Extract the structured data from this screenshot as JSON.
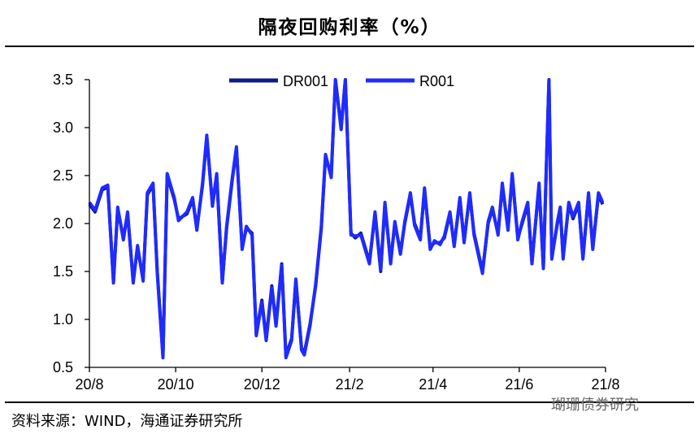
{
  "header": {
    "title": "隔夜回购利率（%）"
  },
  "footer": {
    "source": "资料来源：WIND，海通证券研究所",
    "watermark": "瑚珊债券研究"
  },
  "colors": {
    "DR001": "#0d1a8c",
    "R001": "#1f2bff",
    "axis": "#000000"
  },
  "chart_data": {
    "type": "line",
    "ylim": [
      0.5,
      3.5
    ],
    "yticks": [
      0.5,
      1.0,
      1.5,
      2.0,
      2.5,
      3.0,
      3.5
    ],
    "yticklabels": [
      "0.5",
      "1.0",
      "1.5",
      "2.0",
      "2.5",
      "3.0",
      "3.5"
    ],
    "xlim": [
      "2020-08-01",
      "2021-08-01"
    ],
    "xticks": [
      "2020-08-01",
      "2020-10-01",
      "2020-12-01",
      "2021-02-01",
      "2021-04-01",
      "2021-06-01",
      "2021-08-01"
    ],
    "xticklabels": [
      "20/8",
      "20/10",
      "20/12",
      "21/2",
      "21/4",
      "21/6",
      "21/8"
    ],
    "legend": {
      "position": "top-center",
      "entries": [
        "DR001",
        "R001"
      ]
    },
    "series": [
      {
        "name": "DR001",
        "x": [
          "2020-08-01",
          "2020-08-05",
          "2020-08-10",
          "2020-08-14",
          "2020-08-18",
          "2020-08-21",
          "2020-08-25",
          "2020-08-28",
          "2020-09-01",
          "2020-09-04",
          "2020-09-08",
          "2020-09-11",
          "2020-09-15",
          "2020-09-18",
          "2020-09-22",
          "2020-09-25",
          "2020-09-28",
          "2020-09-30",
          "2020-10-03",
          "2020-10-09",
          "2020-10-13",
          "2020-10-16",
          "2020-10-20",
          "2020-10-23",
          "2020-10-27",
          "2020-10-30",
          "2020-11-03",
          "2020-11-06",
          "2020-11-10",
          "2020-11-13",
          "2020-11-17",
          "2020-11-20",
          "2020-11-24",
          "2020-11-27",
          "2020-12-01",
          "2020-12-04",
          "2020-12-08",
          "2020-12-11",
          "2020-12-15",
          "2020-12-18",
          "2020-12-22",
          "2020-12-25",
          "2020-12-29",
          "2020-12-31",
          "2021-01-04",
          "2021-01-08",
          "2021-01-12",
          "2021-01-15",
          "2021-01-19",
          "2021-01-22",
          "2021-01-26",
          "2021-01-29",
          "2021-02-02",
          "2021-02-05",
          "2021-02-09",
          "2021-02-15",
          "2021-02-19",
          "2021-02-23",
          "2021-02-26",
          "2021-03-02",
          "2021-03-05",
          "2021-03-09",
          "2021-03-12",
          "2021-03-16",
          "2021-03-19",
          "2021-03-23",
          "2021-03-26",
          "2021-03-30",
          "2021-04-02",
          "2021-04-06",
          "2021-04-09",
          "2021-04-13",
          "2021-04-16",
          "2021-04-20",
          "2021-04-23",
          "2021-04-27",
          "2021-04-30",
          "2021-05-06",
          "2021-05-10",
          "2021-05-13",
          "2021-05-17",
          "2021-05-20",
          "2021-05-24",
          "2021-05-27",
          "2021-05-31",
          "2021-06-03",
          "2021-06-07",
          "2021-06-10",
          "2021-06-15",
          "2021-06-18",
          "2021-06-22",
          "2021-06-24",
          "2021-06-28",
          "2021-06-30",
          "2021-07-02",
          "2021-07-06",
          "2021-07-09",
          "2021-07-13",
          "2021-07-16",
          "2021-07-20",
          "2021-07-23",
          "2021-07-27",
          "2021-07-30"
        ],
        "y": [
          2.2,
          2.12,
          2.35,
          2.38,
          1.4,
          2.15,
          1.85,
          2.1,
          1.4,
          1.75,
          1.42,
          2.3,
          2.4,
          1.5,
          0.62,
          2.5,
          2.35,
          2.25,
          2.05,
          2.1,
          2.25,
          1.95,
          2.4,
          2.9,
          2.2,
          2.5,
          1.4,
          1.95,
          2.45,
          2.78,
          1.75,
          1.95,
          1.9,
          0.85,
          1.2,
          0.8,
          1.35,
          0.95,
          1.58,
          0.62,
          0.8,
          1.4,
          0.7,
          0.65,
          0.95,
          1.35,
          1.95,
          2.7,
          2.5,
          3.5,
          3.0,
          3.5,
          1.9,
          1.85,
          1.9,
          1.6,
          2.1,
          1.5,
          2.2,
          1.6,
          2.0,
          1.7,
          2.0,
          2.3,
          2.0,
          1.85,
          2.35,
          1.75,
          1.8,
          1.8,
          1.85,
          2.1,
          1.78,
          2.25,
          1.82,
          2.3,
          1.9,
          1.5,
          2.0,
          2.15,
          1.9,
          2.4,
          1.95,
          2.5,
          1.85,
          2.0,
          2.2,
          1.6,
          2.4,
          1.55,
          3.5,
          1.65,
          2.0,
          2.15,
          1.65,
          2.2,
          2.05,
          2.2,
          1.65,
          2.3,
          1.75,
          2.3,
          2.2
        ]
      },
      {
        "name": "R001",
        "x": [
          "2020-08-01",
          "2020-08-05",
          "2020-08-10",
          "2020-08-14",
          "2020-08-18",
          "2020-08-21",
          "2020-08-25",
          "2020-08-28",
          "2020-09-01",
          "2020-09-04",
          "2020-09-08",
          "2020-09-11",
          "2020-09-15",
          "2020-09-18",
          "2020-09-22",
          "2020-09-25",
          "2020-09-28",
          "2020-09-30",
          "2020-10-03",
          "2020-10-09",
          "2020-10-13",
          "2020-10-16",
          "2020-10-20",
          "2020-10-23",
          "2020-10-27",
          "2020-10-30",
          "2020-11-03",
          "2020-11-06",
          "2020-11-10",
          "2020-11-13",
          "2020-11-17",
          "2020-11-20",
          "2020-11-24",
          "2020-11-27",
          "2020-12-01",
          "2020-12-04",
          "2020-12-08",
          "2020-12-11",
          "2020-12-15",
          "2020-12-18",
          "2020-12-22",
          "2020-12-25",
          "2020-12-29",
          "2020-12-31",
          "2021-01-04",
          "2021-01-08",
          "2021-01-12",
          "2021-01-15",
          "2021-01-19",
          "2021-01-22",
          "2021-01-26",
          "2021-01-29",
          "2021-02-02",
          "2021-02-05",
          "2021-02-09",
          "2021-02-15",
          "2021-02-19",
          "2021-02-23",
          "2021-02-26",
          "2021-03-02",
          "2021-03-05",
          "2021-03-09",
          "2021-03-12",
          "2021-03-16",
          "2021-03-19",
          "2021-03-23",
          "2021-03-26",
          "2021-03-30",
          "2021-04-02",
          "2021-04-06",
          "2021-04-09",
          "2021-04-13",
          "2021-04-16",
          "2021-04-20",
          "2021-04-23",
          "2021-04-27",
          "2021-04-30",
          "2021-05-06",
          "2021-05-10",
          "2021-05-13",
          "2021-05-17",
          "2021-05-20",
          "2021-05-24",
          "2021-05-27",
          "2021-05-31",
          "2021-06-03",
          "2021-06-07",
          "2021-06-10",
          "2021-06-15",
          "2021-06-18",
          "2021-06-22",
          "2021-06-24",
          "2021-06-28",
          "2021-06-30",
          "2021-07-02",
          "2021-07-06",
          "2021-07-09",
          "2021-07-13",
          "2021-07-16",
          "2021-07-20",
          "2021-07-23",
          "2021-07-27",
          "2021-07-30"
        ],
        "y": [
          2.22,
          2.14,
          2.37,
          2.4,
          1.38,
          2.17,
          1.83,
          2.12,
          1.38,
          1.77,
          1.4,
          2.32,
          2.42,
          1.48,
          0.6,
          2.52,
          2.37,
          2.27,
          2.03,
          2.12,
          2.27,
          1.93,
          2.42,
          2.92,
          2.18,
          2.52,
          1.38,
          1.97,
          2.47,
          2.8,
          1.73,
          1.97,
          1.88,
          0.83,
          1.18,
          0.78,
          1.33,
          0.93,
          1.56,
          0.6,
          0.78,
          1.42,
          0.68,
          0.63,
          0.93,
          1.37,
          1.97,
          2.72,
          2.48,
          3.5,
          2.98,
          3.5,
          1.88,
          1.87,
          1.88,
          1.58,
          2.12,
          1.52,
          2.22,
          1.58,
          2.02,
          1.68,
          2.02,
          2.32,
          1.98,
          1.83,
          2.37,
          1.73,
          1.82,
          1.78,
          1.87,
          2.12,
          1.76,
          2.27,
          1.8,
          2.32,
          1.88,
          1.48,
          2.02,
          2.17,
          1.88,
          2.42,
          1.93,
          2.52,
          1.83,
          2.02,
          2.22,
          1.58,
          2.42,
          1.53,
          3.5,
          1.63,
          2.02,
          2.17,
          1.63,
          2.22,
          2.07,
          2.22,
          1.63,
          2.32,
          1.73,
          2.32,
          2.22
        ]
      }
    ]
  }
}
